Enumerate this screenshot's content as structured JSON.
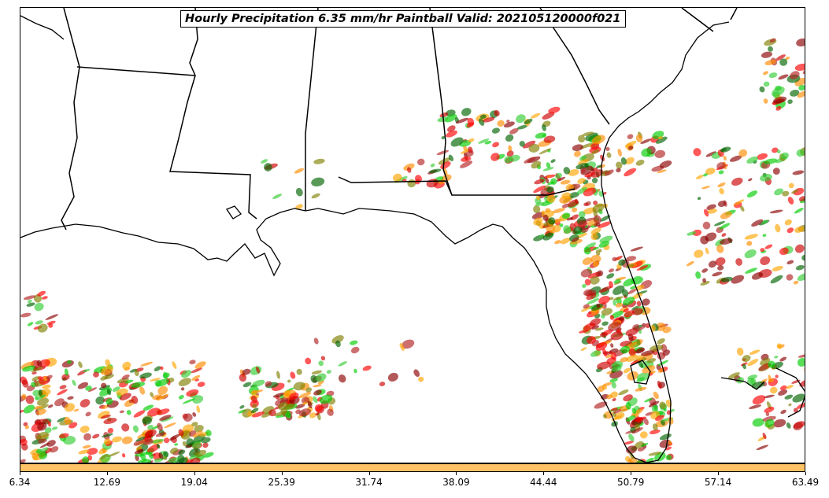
{
  "title": "Hourly Precipitation 6.35 mm/hr Paintball Valid: 202105120000f021",
  "colorbar": {
    "color": "#ffc266",
    "ticks": [
      "6.34",
      "12.69",
      "19.04",
      "25.39",
      "31.74",
      "38.09",
      "44.44",
      "50.79",
      "57.14",
      "63.49"
    ]
  },
  "member_colors": [
    "#ff0000",
    "#cc0000",
    "#ff8c00",
    "#00cc00",
    "#006400",
    "#808000",
    "#8b0000",
    "#ffa500",
    "#32cd32",
    "#b22222"
  ],
  "map": {
    "region": "Southeastern United States, Gulf of Mexico, Florida",
    "boundaries": "state-lines-and-coastlines"
  }
}
